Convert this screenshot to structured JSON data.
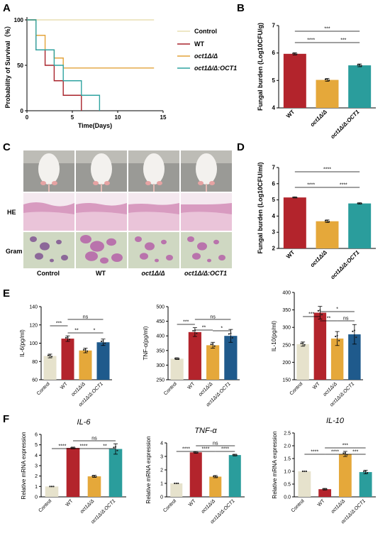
{
  "colors": {
    "control": "#e6e2cc",
    "wt": "#b3242c",
    "oct1": "#e5a83a",
    "oct1oct1": "#2a9d9c",
    "oct1oct1_E": "#1f5a8c",
    "surv_control": "#e9dfb4",
    "surv_wt": "#a8232b",
    "surv_oct1": "#e3a33a",
    "surv_oct1oct1": "#2fa3a0"
  },
  "panels": {
    "A": "A",
    "B": "B",
    "C": "C",
    "D": "D",
    "E": "E",
    "F": "F"
  },
  "groups": {
    "control": "Control",
    "wt": "WT",
    "oct1": "oct1Δ/Δ",
    "oct1oct1": "oct1Δ/Δ:OCT1"
  },
  "panel_c": {
    "col_labels": [
      "Control",
      "WT",
      "oct1Δ/Δ",
      "oct1Δ/Δ:OCT1"
    ],
    "row_labels": [
      "HE",
      "Gram"
    ]
  },
  "chart_data": [
    {
      "id": "A",
      "type": "line",
      "xlabel": "Time(Days)",
      "ylabel": "Probability of Survival（%）",
      "xlim": [
        0,
        15
      ],
      "ylim": [
        0,
        100
      ],
      "xticks": [
        0,
        5,
        10,
        15
      ],
      "yticks": [
        0,
        50,
        100
      ],
      "series": [
        {
          "name": "Control",
          "x": [
            0,
            14
          ],
          "y": [
            100,
            100
          ]
        },
        {
          "name": "WT",
          "x": [
            0,
            1,
            2,
            3,
            4,
            5,
            6
          ],
          "y": [
            100,
            67,
            50,
            33,
            17,
            17,
            0
          ]
        },
        {
          "name": "oct1Δ/Δ",
          "x": [
            0,
            1,
            2,
            3,
            4,
            14
          ],
          "y": [
            100,
            83,
            67,
            58,
            47,
            47
          ]
        },
        {
          "name": "oct1Δ/Δ:OCT1",
          "x": [
            0,
            1,
            2,
            3,
            4,
            5,
            6,
            7,
            8
          ],
          "y": [
            100,
            67,
            67,
            50,
            33,
            33,
            17,
            17,
            0
          ]
        }
      ],
      "legend": "right"
    },
    {
      "id": "B",
      "type": "bar",
      "ylabel": "Fungal burden (Log10CFU/g)",
      "categories": [
        "WT",
        "oct1Δ/Δ",
        "oct1Δ/Δ:OCT1"
      ],
      "values": [
        5.97,
        5.02,
        5.55
      ],
      "errors": [
        0.04,
        0.05,
        0.05
      ],
      "ylim": [
        4,
        7
      ],
      "yticks": [
        4,
        5,
        6,
        7
      ],
      "brackets": [
        {
          "from": 0,
          "to": 1,
          "label": "****"
        },
        {
          "from": 1,
          "to": 2,
          "label": "***"
        },
        {
          "from": 0,
          "to": 2,
          "label": "***"
        }
      ]
    },
    {
      "id": "D",
      "type": "bar",
      "ylabel": "Fungal burden (Log10CFU/ml)",
      "categories": [
        "WT",
        "oct1Δ/Δ",
        "oct1Δ/Δ:OCT1"
      ],
      "values": [
        5.15,
        3.68,
        4.78
      ],
      "errors": [
        0.03,
        0.08,
        0.04
      ],
      "ylim": [
        2,
        7
      ],
      "yticks": [
        2,
        3,
        4,
        5,
        6,
        7
      ],
      "brackets": [
        {
          "from": 0,
          "to": 1,
          "label": "****"
        },
        {
          "from": 1,
          "to": 2,
          "label": "****"
        },
        {
          "from": 0,
          "to": 2,
          "label": "****"
        }
      ]
    },
    {
      "id": "E1",
      "type": "bar",
      "ylabel": "IL-6(pg/ml)",
      "categories": [
        "Control",
        "WT",
        "oct1Δ/Δ",
        "oct1Δ/Δ:OCT1"
      ],
      "values": [
        86,
        105,
        92,
        101
      ],
      "errors": [
        2,
        3,
        2.5,
        3.5
      ],
      "ylim": [
        60,
        140
      ],
      "yticks": [
        60,
        80,
        100,
        120,
        140
      ],
      "brackets": [
        {
          "from": 0,
          "to": 1,
          "label": "***"
        },
        {
          "from": 1,
          "to": 2,
          "label": "**"
        },
        {
          "from": 2,
          "to": 3,
          "label": "*"
        },
        {
          "from": 1,
          "to": 3,
          "label": "ns"
        }
      ]
    },
    {
      "id": "E2",
      "type": "bar",
      "ylabel": "TNF-α(pg/ml)",
      "categories": [
        "Control",
        "WT",
        "oct1Δ/Δ",
        "oct1Δ/Δ:OCT1"
      ],
      "values": [
        322,
        413,
        368,
        400
      ],
      "errors": [
        3,
        15,
        10,
        22
      ],
      "ylim": [
        250,
        500
      ],
      "yticks": [
        250,
        300,
        350,
        400,
        450,
        500
      ],
      "brackets": [
        {
          "from": 0,
          "to": 1,
          "label": "***"
        },
        {
          "from": 1,
          "to": 2,
          "label": "**"
        },
        {
          "from": 2,
          "to": 3,
          "label": "*"
        },
        {
          "from": 1,
          "to": 3,
          "label": "ns"
        }
      ]
    },
    {
      "id": "E3",
      "type": "bar",
      "ylabel": "IL-10(pg/ml)",
      "categories": [
        "Control",
        "WT",
        "oct1Δ/Δ",
        "oct1Δ/Δ:OCT1"
      ],
      "values": [
        252,
        342,
        268,
        280
      ],
      "errors": [
        6,
        18,
        20,
        28
      ],
      "ylim": [
        150,
        400
      ],
      "yticks": [
        150,
        200,
        250,
        300,
        350,
        400
      ],
      "brackets": [
        {
          "from": 0,
          "to": 1,
          "label": "***"
        },
        {
          "from": 1,
          "to": 2,
          "label": "**"
        },
        {
          "from": 2,
          "to": 3,
          "label": "ns"
        },
        {
          "from": 1,
          "to": 3,
          "label": "*"
        }
      ]
    },
    {
      "id": "F1",
      "type": "bar",
      "title": "IL-6",
      "ylabel": "Relative mRNA expression",
      "categories": [
        "Control",
        "WT",
        "oct1Δ/Δ",
        "oct1Δ/Δ:OCT1"
      ],
      "values": [
        1.0,
        4.7,
        1.97,
        4.6
      ],
      "errors": [
        0,
        0.08,
        0.1,
        0.5
      ],
      "ylim": [
        0,
        6
      ],
      "yticks": [
        0,
        1,
        2,
        3,
        4,
        5,
        6
      ],
      "brackets": [
        {
          "from": 0,
          "to": 1,
          "label": "****"
        },
        {
          "from": 1,
          "to": 2,
          "label": "****"
        },
        {
          "from": 2,
          "to": 3,
          "label": "**"
        },
        {
          "from": 1,
          "to": 3,
          "label": "ns"
        }
      ]
    },
    {
      "id": "F2",
      "type": "bar",
      "title": "TNF-α",
      "ylabel": "Relative mRNA expression",
      "categories": [
        "Control",
        "WT",
        "oct1Δ/Δ",
        "oct1Δ/Δ:OCT1"
      ],
      "values": [
        1.0,
        3.3,
        1.5,
        3.1
      ],
      "errors": [
        0,
        0.07,
        0.08,
        0.06
      ],
      "ylim": [
        0,
        4
      ],
      "yticks": [
        0,
        1,
        2,
        3,
        4
      ],
      "brackets": [
        {
          "from": 0,
          "to": 1,
          "label": "****"
        },
        {
          "from": 1,
          "to": 2,
          "label": "****"
        },
        {
          "from": 2,
          "to": 3,
          "label": "****"
        },
        {
          "from": 1,
          "to": 3,
          "label": "ns"
        }
      ]
    },
    {
      "id": "F3",
      "type": "bar",
      "title": "IL-10",
      "ylabel": "Relative mRNA expression",
      "categories": [
        "Control",
        "WT",
        "oct1Δ/Δ",
        "oct1Δ/Δ:OCT1"
      ],
      "values": [
        1.0,
        0.3,
        1.68,
        0.97
      ],
      "errors": [
        0,
        0.03,
        0.1,
        0.07
      ],
      "ylim": [
        0,
        2.5
      ],
      "yticks": [
        0.0,
        0.5,
        1.0,
        1.5,
        2.0,
        2.5
      ],
      "brackets": [
        {
          "from": 0,
          "to": 1,
          "label": "****"
        },
        {
          "from": 1,
          "to": 2,
          "label": "****"
        },
        {
          "from": 2,
          "to": 3,
          "label": "***"
        },
        {
          "from": 1,
          "to": 3,
          "label": "***"
        }
      ]
    }
  ]
}
